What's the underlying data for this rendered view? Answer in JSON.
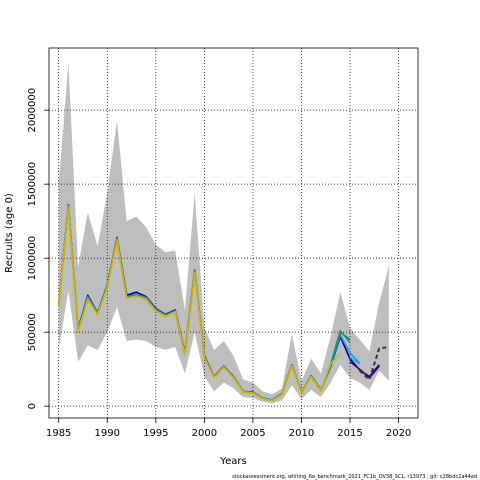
{
  "chart_data": {
    "type": "line",
    "xlabel": "Years",
    "ylabel": "Recruits (age 0)",
    "xlim": [
      1984,
      2022
    ],
    "ylim": [
      -80000,
      2420000
    ],
    "x_ticks": [
      1985,
      1990,
      1995,
      2000,
      2005,
      2010,
      2015,
      2020
    ],
    "y_ticks": [
      0,
      500000,
      1000000,
      1500000,
      2000000
    ],
    "grid": true,
    "footer": "stockassessment.org, whiting_6a_benchmark_2021_FC1b_OV38_SCL, r13973 , git: c28bdc2a44ad",
    "band": {
      "x": [
        1985,
        1986,
        1987,
        1988,
        1989,
        1990,
        1991,
        1992,
        1993,
        1994,
        1995,
        1996,
        1997,
        1998,
        1999,
        2000,
        2001,
        2002,
        2003,
        2004,
        2005,
        2006,
        2007,
        2008,
        2009,
        2010,
        2011,
        2012,
        2013,
        2014,
        2015,
        2016,
        2017,
        2018,
        2019
      ],
      "lower": [
        380000,
        780000,
        300000,
        410000,
        380000,
        500000,
        670000,
        440000,
        450000,
        440000,
        400000,
        380000,
        400000,
        220000,
        500000,
        200000,
        100000,
        160000,
        120000,
        60000,
        55000,
        30000,
        20000,
        40000,
        140000,
        50000,
        110000,
        60000,
        160000,
        280000,
        190000,
        160000,
        110000,
        240000,
        170000
      ],
      "upper": [
        1500000,
        2320000,
        940000,
        1310000,
        1080000,
        1440000,
        1930000,
        1250000,
        1280000,
        1210000,
        1090000,
        1040000,
        1050000,
        650000,
        1440000,
        530000,
        380000,
        440000,
        340000,
        180000,
        160000,
        100000,
        80000,
        120000,
        490000,
        170000,
        320000,
        220000,
        470000,
        770000,
        530000,
        450000,
        370000,
        700000,
        950000
      ]
    },
    "series": [
      {
        "color": "#000080",
        "x": [
          1985,
          1986,
          1987,
          1988,
          1989,
          1990,
          1991,
          1992,
          1993,
          1994,
          1995,
          1996,
          1997,
          1998,
          1999,
          2000,
          2001,
          2002,
          2003,
          2004,
          2005,
          2006,
          2007,
          2008,
          2009,
          2010,
          2011,
          2012,
          2013,
          2014,
          2015,
          2016,
          2017,
          2018
        ],
        "values": [
          690000,
          1360000,
          520000,
          750000,
          630000,
          820000,
          1140000,
          750000,
          770000,
          740000,
          660000,
          620000,
          650000,
          360000,
          920000,
          340000,
          200000,
          270000,
          200000,
          100000,
          95000,
          55000,
          42000,
          85000,
          280000,
          95000,
          205000,
          110000,
          265000,
          470000,
          320000,
          245000,
          200000,
          280000
        ]
      },
      {
        "color": "#1E90FF",
        "x": [
          1985,
          1986,
          1987,
          1988,
          1989,
          1990,
          1991,
          1992,
          1993,
          1994,
          1995,
          1996,
          1997,
          1998,
          1999,
          2000,
          2001,
          2002,
          2003,
          2004,
          2005,
          2006,
          2007,
          2008,
          2009,
          2010,
          2011,
          2012,
          2013,
          2014,
          2015,
          2016
        ],
        "values": [
          685000,
          1355000,
          515000,
          740000,
          628000,
          815000,
          1135000,
          740000,
          755000,
          735000,
          655000,
          615000,
          645000,
          355000,
          915000,
          335000,
          198000,
          268000,
          198000,
          99000,
          93000,
          54000,
          41000,
          83000,
          278000,
          94000,
          203000,
          108000,
          270000,
          480000,
          360000,
          290000
        ]
      },
      {
        "color": "#008080",
        "x": [
          1985,
          1986,
          1987,
          1988,
          1989,
          1990,
          1991,
          1992,
          1993,
          1994,
          1995,
          1996,
          1997,
          1998,
          1999,
          2000,
          2001,
          2002,
          2003,
          2004,
          2005,
          2006,
          2007,
          2008,
          2009,
          2010,
          2011,
          2012,
          2013,
          2014,
          2015
        ],
        "values": [
          680000,
          1350000,
          510000,
          730000,
          625000,
          810000,
          1130000,
          735000,
          750000,
          730000,
          650000,
          612000,
          642000,
          352000,
          910000,
          332000,
          196000,
          266000,
          196000,
          98000,
          92000,
          53000,
          40000,
          82000,
          276000,
          93000,
          201000,
          107000,
          275000,
          500000,
          450000
        ]
      },
      {
        "color": "#2E8B57",
        "x": [
          1985,
          1986,
          1987,
          1988,
          1989,
          1990,
          1991,
          1992,
          1993,
          1994,
          1995,
          1996,
          1997,
          1998,
          1999,
          2000,
          2001,
          2002,
          2003,
          2004,
          2005,
          2006,
          2007,
          2008,
          2009,
          2010,
          2011,
          2012,
          2013,
          2014,
          2015
        ],
        "values": [
          678000,
          1348000,
          508000,
          728000,
          622000,
          808000,
          1128000,
          733000,
          748000,
          728000,
          648000,
          610000,
          640000,
          350000,
          908000,
          330000,
          195000,
          265000,
          195000,
          97000,
          91000,
          52000,
          39500,
          81000,
          275000,
          92000,
          200000,
          106000,
          280000,
          510000,
          430000
        ]
      },
      {
        "color": "#9ACD32",
        "x": [
          1985,
          1986,
          1987,
          1988,
          1989,
          1990,
          1991,
          1992,
          1993,
          1994,
          1995,
          1996,
          1997,
          1998,
          1999,
          2000,
          2001,
          2002,
          2003,
          2004,
          2005,
          2006,
          2007,
          2008,
          2009,
          2010,
          2011,
          2012,
          2013,
          2014
        ],
        "values": [
          675000,
          1345000,
          505000,
          725000,
          620000,
          805000,
          1125000,
          730000,
          745000,
          725000,
          645000,
          608000,
          638000,
          348000,
          905000,
          328000,
          194000,
          264000,
          194000,
          96000,
          90000,
          51500,
          39000,
          80000,
          274000,
          91000,
          199000,
          105000,
          285000,
          360000
        ]
      },
      {
        "color": "#D4B000",
        "x": [
          1985,
          1986,
          1987,
          1988,
          1989,
          1990,
          1991,
          1992,
          1993,
          1994,
          1995,
          1996,
          1997,
          1998,
          1999,
          2000,
          2001,
          2002,
          2003,
          2004,
          2005,
          2006,
          2007,
          2008,
          2009,
          2010,
          2011,
          2012,
          2013
        ],
        "values": [
          672000,
          1342000,
          502000,
          722000,
          618000,
          802000,
          1122000,
          728000,
          742000,
          722000,
          642000,
          606000,
          636000,
          346000,
          902000,
          326000,
          193000,
          263000,
          193000,
          95000,
          89000,
          51000,
          38500,
          79000,
          272000,
          90000,
          198000,
          104000,
          290000
        ]
      },
      {
        "color": "#00CED1",
        "x": [
          2015,
          2016
        ],
        "values": [
          330000,
          285000
        ]
      },
      {
        "color": "#4B0082",
        "x": [
          2015,
          2016,
          2017,
          2018
        ],
        "values": [
          300000,
          250000,
          190000,
          270000
        ]
      },
      {
        "color": "#333333",
        "dashed": true,
        "x": [
          2016,
          2017,
          2018,
          2019
        ],
        "values": [
          240000,
          180000,
          390000,
          400000
        ]
      }
    ]
  }
}
